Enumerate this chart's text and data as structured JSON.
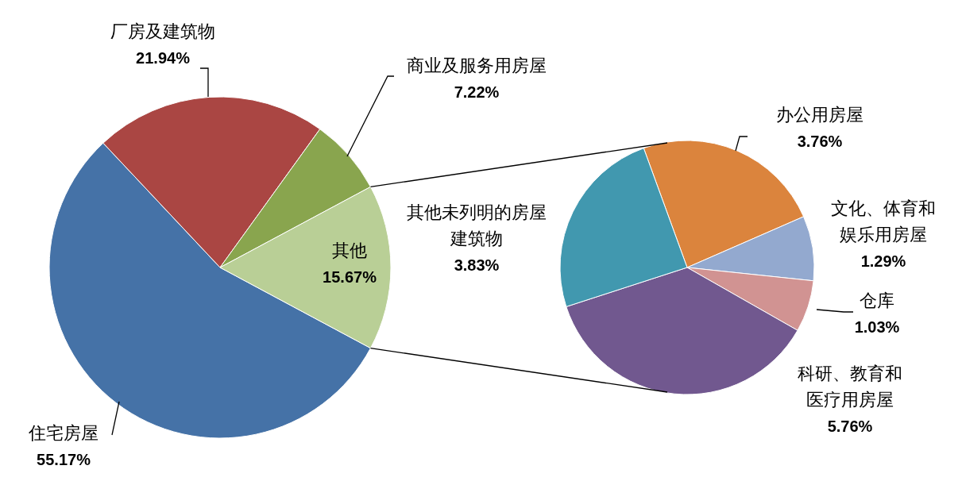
{
  "chart_data": [
    {
      "type": "pie",
      "categories": [
        "住宅房屋",
        "厂房及建筑物",
        "商业及服务用房屋",
        "其他"
      ],
      "values": [
        55.17,
        21.94,
        7.22,
        15.67
      ],
      "colors": [
        "#4572a7",
        "#aa4643",
        "#89a54e",
        "#b9cf96"
      ],
      "value_labels": [
        "55.17%",
        "21.94%",
        "7.22%",
        "15.67%"
      ]
    },
    {
      "type": "pie",
      "categories": [
        "办公用房屋",
        "文化、体育和娱乐用房屋",
        "仓库",
        "科研、教育和医疗用房屋",
        "其他未列明的房屋建筑物"
      ],
      "values": [
        3.76,
        1.29,
        1.03,
        5.76,
        3.83
      ],
      "colors": [
        "#db843d",
        "#93a9cf",
        "#d19392",
        "#71588f",
        "#4198af"
      ],
      "value_labels": [
        "3.76%",
        "1.29%",
        "1.03%",
        "5.76%",
        "3.83%"
      ]
    }
  ]
}
